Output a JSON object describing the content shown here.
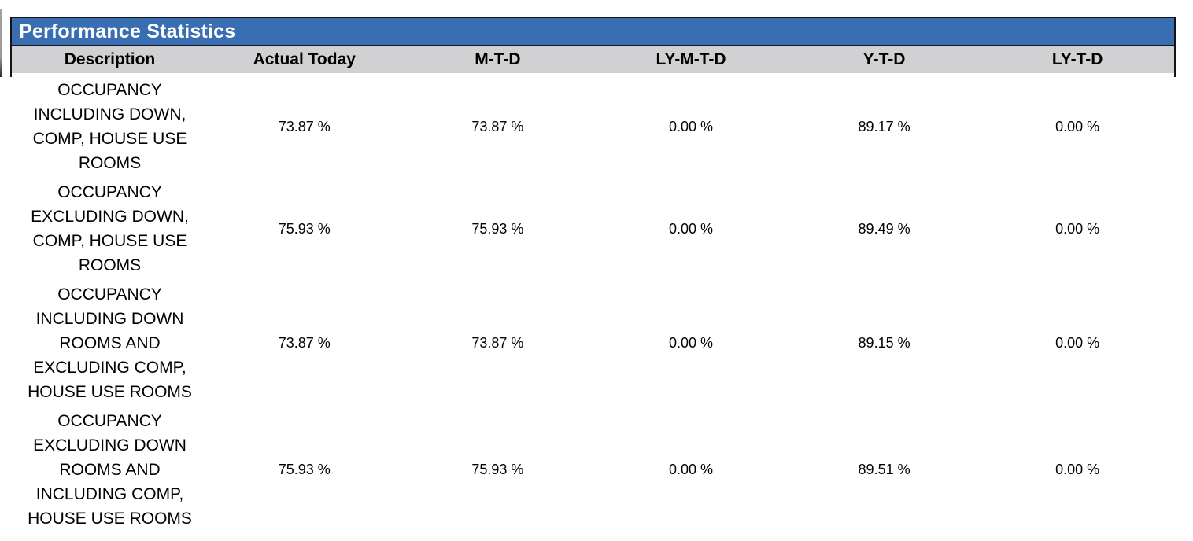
{
  "report": {
    "title": "Performance Statistics",
    "columns": [
      "Description",
      "Actual Today",
      "M-T-D",
      "LY-M-T-D",
      "Y-T-D",
      "LY-T-D"
    ],
    "rows": [
      {
        "description": "OCCUPANCY\nINCLUDING DOWN,\nCOMP, HOUSE USE\nROOMS",
        "values": [
          "73.87 %",
          "73.87 %",
          "0.00 %",
          "89.17 %",
          "0.00 %"
        ]
      },
      {
        "description": "OCCUPANCY\nEXCLUDING DOWN,\nCOMP, HOUSE USE\nROOMS",
        "values": [
          "75.93 %",
          "75.93 %",
          "0.00 %",
          "89.49 %",
          "0.00 %"
        ]
      },
      {
        "description": "OCCUPANCY\nINCLUDING DOWN\nROOMS AND\nEXCLUDING COMP,\nHOUSE USE ROOMS",
        "values": [
          "73.87 %",
          "73.87 %",
          "0.00 %",
          "89.15 %",
          "0.00 %"
        ]
      },
      {
        "description": "OCCUPANCY\nEXCLUDING DOWN\nROOMS AND\nINCLUDING COMP,\nHOUSE USE ROOMS",
        "values": [
          "75.93 %",
          "75.93 %",
          "0.00 %",
          "89.51 %",
          "0.00 %"
        ]
      }
    ],
    "colors": {
      "title_bar_blue": "#3a6eb2",
      "header_gray": "#d1d1d3",
      "border_black": "#141414",
      "title_text": "#ffffff",
      "body_text": "#000000"
    }
  }
}
